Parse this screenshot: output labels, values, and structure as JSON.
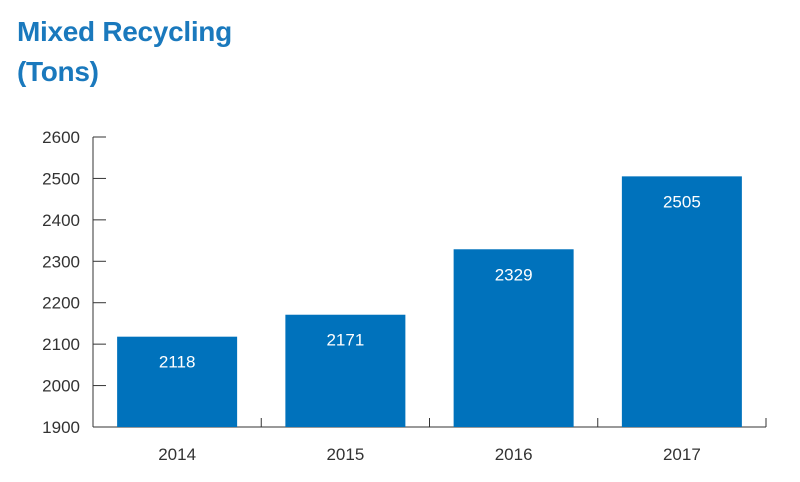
{
  "title_line1": "Mixed Recycling",
  "title_line2": "(Tons)",
  "colors": {
    "title": "#1a79bd",
    "bar": "#0072bc",
    "axis": "#333333"
  },
  "chart_data": {
    "type": "bar",
    "title": "Mixed Recycling (Tons)",
    "categories": [
      "2014",
      "2015",
      "2016",
      "2017"
    ],
    "values": [
      2118,
      2171,
      2329,
      2505
    ],
    "data_labels": [
      "2118",
      "2171",
      "2329",
      "2505"
    ],
    "xlabel": "",
    "ylabel": "",
    "ylim": [
      1900,
      2600
    ],
    "yticks": [
      "1900",
      "2000",
      "2100",
      "2200",
      "2300",
      "2400",
      "2500",
      "2600"
    ],
    "grid": false,
    "legend": "none"
  }
}
